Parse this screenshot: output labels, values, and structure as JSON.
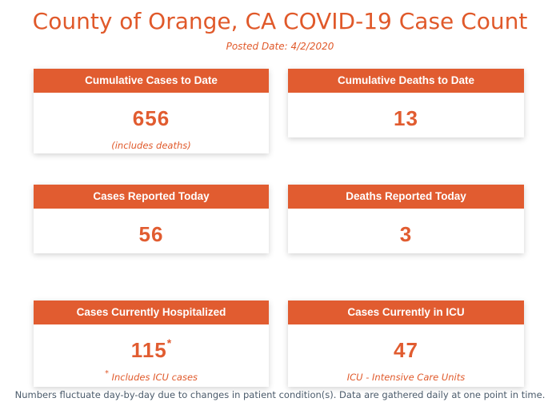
{
  "header": {
    "title": "County of Orange, CA COVID-19 Case Count",
    "posted_date": "Posted Date: 4/2/2020"
  },
  "cards": {
    "cumulative_cases": {
      "label": "Cumulative Cases to Date",
      "value": "656",
      "note": "(includes deaths)"
    },
    "cumulative_deaths": {
      "label": "Cumulative Deaths to Date",
      "value": "13"
    },
    "cases_today": {
      "label": "Cases Reported Today",
      "value": "56"
    },
    "deaths_today": {
      "label": "Deaths Reported Today",
      "value": "3"
    },
    "hospitalized": {
      "label": "Cases Currently Hospitalized",
      "value": "115",
      "value_marker": "*",
      "note_marker": "*",
      "note": "Includes ICU cases"
    },
    "icu": {
      "label": "Cases Currently in ICU",
      "value": "47",
      "note": "ICU - Intensive Care Units"
    }
  },
  "footer": {
    "text": "Numbers fluctuate day-by-day due to changes in patient condition(s). Data are gathered daily at one point in time."
  },
  "colors": {
    "accent": "#e15c30",
    "footer_text": "#4a5a6a"
  }
}
